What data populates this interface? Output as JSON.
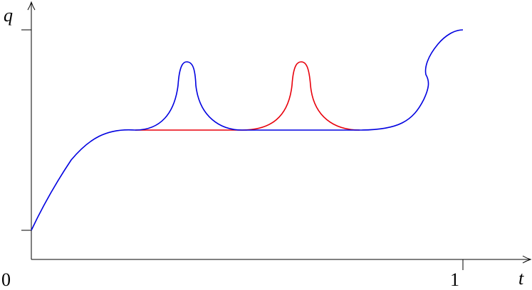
{
  "axes": {
    "y_label": "q",
    "x_label": "t",
    "origin_label": "0",
    "x_end_label": "1"
  }
}
